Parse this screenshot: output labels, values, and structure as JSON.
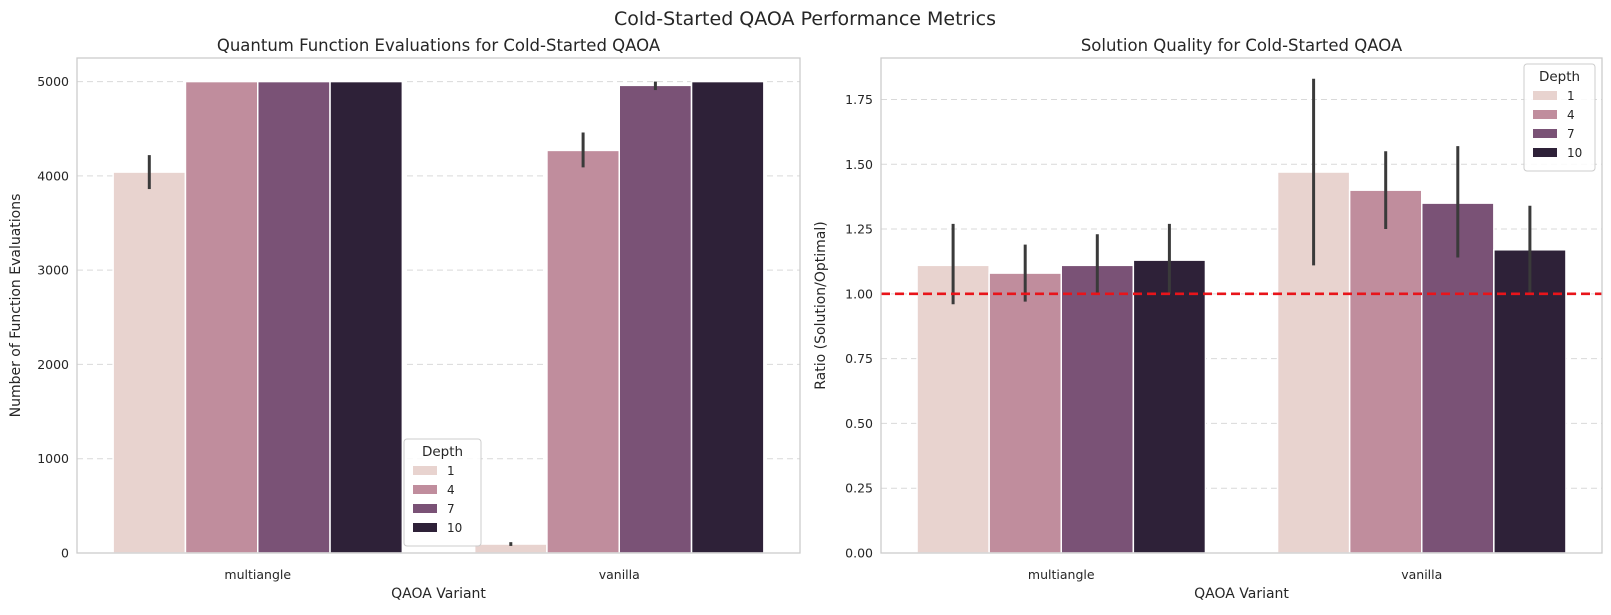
{
  "title": "Cold-Started QAOA Performance Metrics",
  "colors": {
    "series": [
      "#e8d3cf",
      "#c08d9d",
      "#7a5276",
      "#2e2138"
    ],
    "grid": "#d9d9d9",
    "axis_frame": "#cccccc",
    "error_bar": "#3a3a3a",
    "reference_line": "#e8141a"
  },
  "chart_data": [
    {
      "type": "bar",
      "title": "Quantum Function Evaluations for Cold-Started QAOA",
      "xlabel": "QAOA Variant",
      "ylabel": "Number of Function Evaluations",
      "categories": [
        "multiangle",
        "vanilla"
      ],
      "ylim": [
        0,
        5250
      ],
      "yticks": [
        0,
        1000,
        2000,
        3000,
        4000,
        5000
      ],
      "grid": "y dashed",
      "legend": {
        "title": "Depth",
        "placement": "lower-center"
      },
      "series": [
        {
          "name": "1",
          "values": [
            4040,
            95
          ],
          "errors": [
            [
              3860,
              4220
            ],
            [
              75,
              115
            ]
          ]
        },
        {
          "name": "4",
          "values": [
            5000,
            4270
          ],
          "errors": [
            [
              5000,
              5000
            ],
            [
              4090,
              4460
            ]
          ]
        },
        {
          "name": "7",
          "values": [
            5000,
            4960
          ],
          "errors": [
            [
              5000,
              5000
            ],
            [
              4910,
              5000
            ]
          ]
        },
        {
          "name": "10",
          "values": [
            5000,
            5000
          ],
          "errors": [
            [
              5000,
              5000
            ],
            [
              5000,
              5000
            ]
          ]
        }
      ]
    },
    {
      "type": "bar",
      "title": "Solution Quality for Cold-Started QAOA",
      "xlabel": "QAOA Variant",
      "ylabel": "Ratio (Solution/Optimal)",
      "categories": [
        "multiangle",
        "vanilla"
      ],
      "ylim": [
        0,
        1.91
      ],
      "yticks": [
        0.0,
        0.25,
        0.5,
        0.75,
        1.0,
        1.25,
        1.5,
        1.75
      ],
      "ytick_labels": [
        "0.00",
        "0.25",
        "0.50",
        "0.75",
        "1.00",
        "1.25",
        "1.50",
        "1.75"
      ],
      "grid": "y dashed",
      "reference_line": {
        "y": 1.0,
        "style": "dashed"
      },
      "legend": {
        "title": "Depth",
        "placement": "top-right"
      },
      "series": [
        {
          "name": "1",
          "values": [
            1.11,
            1.47
          ],
          "errors": [
            [
              0.96,
              1.27
            ],
            [
              1.11,
              1.83
            ]
          ]
        },
        {
          "name": "4",
          "values": [
            1.08,
            1.4
          ],
          "errors": [
            [
              0.97,
              1.19
            ],
            [
              1.25,
              1.55
            ]
          ]
        },
        {
          "name": "7",
          "values": [
            1.11,
            1.35
          ],
          "errors": [
            [
              1.0,
              1.23
            ],
            [
              1.14,
              1.57
            ]
          ]
        },
        {
          "name": "10",
          "values": [
            1.13,
            1.17
          ],
          "errors": [
            [
              1.0,
              1.27
            ],
            [
              1.0,
              1.34
            ]
          ]
        }
      ]
    }
  ]
}
